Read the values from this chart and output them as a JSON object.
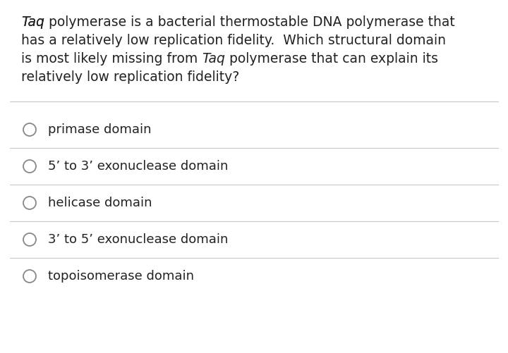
{
  "background_color": "#ffffff",
  "question_text_line1_italic": "Taq",
  "question_text_line1_rest": " polymerase is a bacterial thermostable DNA polymerase that",
  "question_text_line2": "has a relatively low replication fidelity.  Which structural domain",
  "question_text_line3_pre": "is most likely missing from ",
  "question_text_line3_italic": "Taq",
  "question_text_line3_post": " polymerase that can explain its",
  "question_text_line4": "relatively low replication fidelity?",
  "options": [
    "primase domain",
    "5’ to 3’ exonuclease domain",
    "helicase domain",
    "3’ to 5’ exonuclease domain",
    "topoisomerase domain"
  ],
  "line_color": "#c8c8c8",
  "circle_edge_color": "#888888",
  "text_color": "#222222",
  "font_size_question": 13.5,
  "font_size_options": 13.0
}
